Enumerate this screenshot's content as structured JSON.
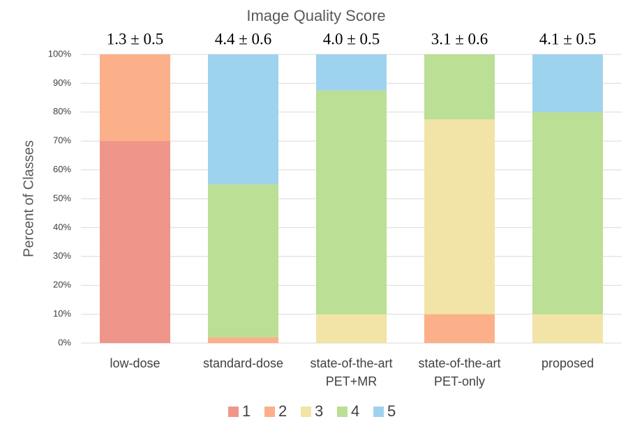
{
  "chart_data": {
    "type": "stacked_bar",
    "title": "Image Quality Score",
    "y_label": "Percent of Classes",
    "categories": [
      [
        "low-dose"
      ],
      [
        "standard-dose"
      ],
      [
        "state-of-the-art",
        "PET+MR"
      ],
      [
        "state-of-the-art",
        "PET-only"
      ],
      [
        "proposed"
      ]
    ],
    "annotations": [
      "1.3 ± 0.5",
      "4.4 ± 0.6",
      "4.0 ± 0.5",
      "3.1 ± 0.6",
      "4.1 ± 0.5"
    ],
    "series": [
      {
        "name": "1",
        "color": "#f0958a",
        "values": [
          70,
          0,
          0,
          0,
          0
        ]
      },
      {
        "name": "2",
        "color": "#fbb08a",
        "values": [
          30,
          2,
          0,
          10,
          0
        ]
      },
      {
        "name": "3",
        "color": "#f1e4a6",
        "values": [
          0,
          0,
          10,
          67.5,
          10
        ]
      },
      {
        "name": "4",
        "color": "#badf95",
        "values": [
          0,
          53,
          77.5,
          22.5,
          70
        ]
      },
      {
        "name": "5",
        "color": "#9ed3ee",
        "values": [
          0,
          45,
          12.5,
          0,
          20
        ]
      }
    ],
    "ylim": [
      0,
      100
    ],
    "yticks": [
      {
        "value": 0,
        "label": "0%"
      },
      {
        "value": 10,
        "label": "10%"
      },
      {
        "value": 20,
        "label": "20%"
      },
      {
        "value": 30,
        "label": "30%"
      },
      {
        "value": 40,
        "label": "40%"
      },
      {
        "value": 50,
        "label": "50%"
      },
      {
        "value": 60,
        "label": "60%"
      },
      {
        "value": 70,
        "label": "70%"
      },
      {
        "value": 80,
        "label": "80%"
      },
      {
        "value": 90,
        "label": "90%"
      },
      {
        "value": 100,
        "label": "100%"
      }
    ],
    "grid": true,
    "legend": "bottom"
  }
}
